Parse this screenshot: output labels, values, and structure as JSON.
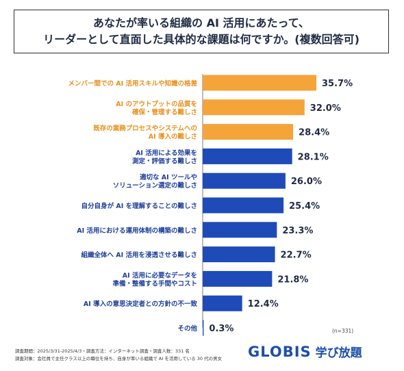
{
  "title": {
    "line1": "あなたが率いる組織の AI 活用にあたって、",
    "line2": "リーダーとして直面した具体的な課題は何ですか。(複数回答可)"
  },
  "colors": {
    "highlight": "#f5a43a",
    "primary": "#1e4bb8",
    "label_highlight": "#e8901c",
    "label_primary": "#1e3f99",
    "value": "#1f2a44"
  },
  "chart_data": {
    "type": "bar",
    "orientation": "horizontal",
    "unit": "%",
    "xlim": [
      0,
      35.7
    ],
    "n_label": "(n=331)",
    "categories": [
      [
        "メンバー間での AI 活用スキルや知識の格差"
      ],
      [
        "AI のアウトプットの品質を",
        "確保・管理する難しさ"
      ],
      [
        "既存の業務プロセスやシステムへの",
        "AI 導入の難しさ"
      ],
      [
        "AI 活用による効果を",
        "測定・評価する難しさ"
      ],
      [
        "適切な AI ツールや",
        "ソリューション選定の難しさ"
      ],
      [
        "自分自身が AI を理解することの難しさ"
      ],
      [
        "AI 活用における運用体制の構築の難しさ"
      ],
      [
        "組織全体へ AI 活用を浸透させる難しさ"
      ],
      [
        "AI 活用に必要なデータを",
        "準備・整備する手間やコスト"
      ],
      [
        "AI 導入の意思決定者との方針の不一致"
      ],
      [
        "その他"
      ]
    ],
    "values": [
      35.7,
      32.0,
      28.4,
      28.1,
      26.0,
      25.4,
      23.3,
      22.7,
      21.8,
      12.4,
      0.3
    ],
    "value_labels": [
      "35.7%",
      "32.0%",
      "28.4%",
      "28.1%",
      "26.0%",
      "25.4%",
      "23.3%",
      "22.7%",
      "21.8%",
      "12.4%",
      "0.3%"
    ],
    "highlighted_top": 3
  },
  "footer": {
    "survey_period": "調査期間：2025/3/31-2025/4/3・調査方法：インターネット調査・調査人数：331 名",
    "survey_target": "調査対象：会社員で主任クラス以上の職位を持ち、自身が率いる組織で AI を活用している 30 代の男女"
  },
  "logo": {
    "main": "GLOBIS",
    "sub": "学び放題"
  }
}
